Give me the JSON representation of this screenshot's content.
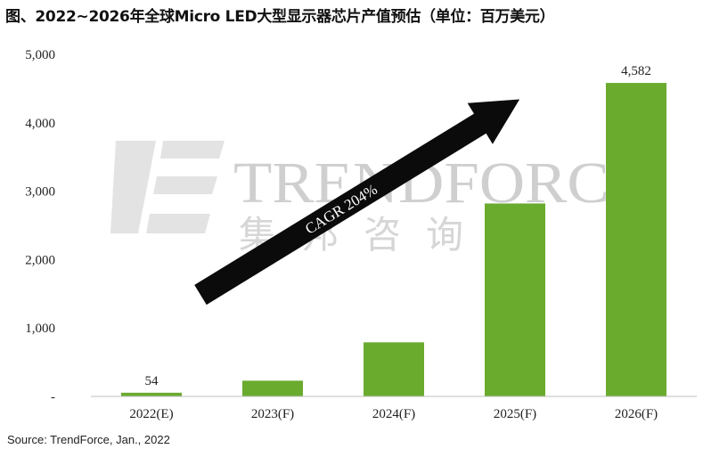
{
  "chart_data": {
    "type": "bar",
    "title": "图、2022~2026年全球Micro LED大型显示器芯片产值预估（单位：百万美元）",
    "categories": [
      "2022(E)",
      "2023(F)",
      "2024(F)",
      "2025(F)",
      "2026(F)"
    ],
    "values": [
      54,
      230,
      790,
      2820,
      4582
    ],
    "data_labels": [
      "54",
      "",
      "",
      "",
      "4,582"
    ],
    "y_ticks": [
      0,
      1000,
      2000,
      3000,
      4000,
      5000
    ],
    "y_tick_labels": [
      "-",
      "1,000",
      "2,000",
      "3,000",
      "4,000",
      "5,000"
    ],
    "ylim": [
      0,
      5000
    ],
    "grid": false,
    "legend": "none",
    "bar_color": "#6aab2e",
    "annotation": "CAGR 204%",
    "watermark": {
      "brand": "TRENDFORCE",
      "subtitle": "集邦咨询"
    }
  },
  "source": "Source: TrendForce, Jan., 2022"
}
